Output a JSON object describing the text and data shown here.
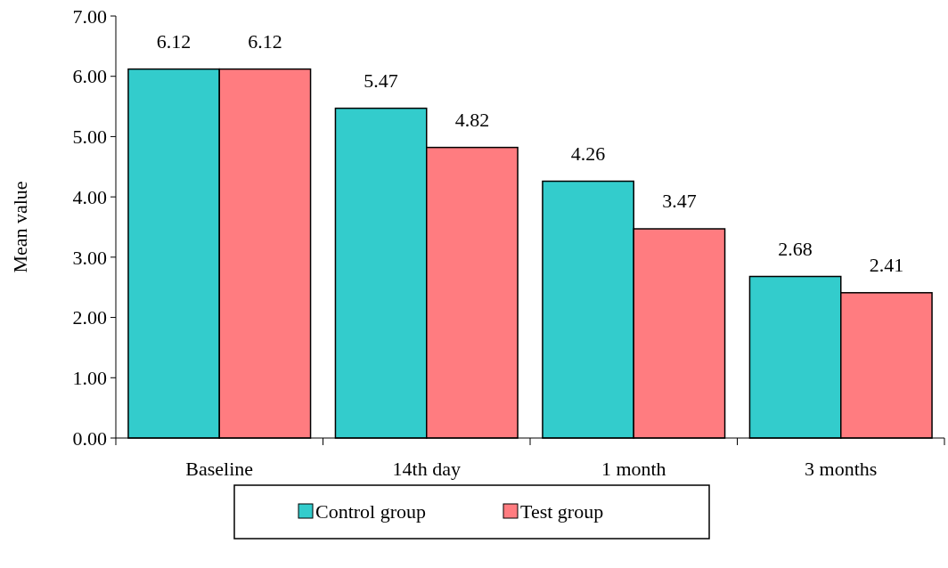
{
  "chart_data": {
    "type": "bar",
    "ylabel": "Mean value",
    "categories": [
      "Baseline",
      "14th day",
      "1 month",
      "3 months"
    ],
    "series": [
      {
        "name": "Control group",
        "color": "#33cccc",
        "values": [
          6.12,
          5.47,
          4.26,
          2.68
        ]
      },
      {
        "name": "Test group",
        "color": "#ff7c80",
        "values": [
          6.12,
          4.82,
          3.47,
          2.41
        ]
      }
    ],
    "ylim": [
      0,
      7
    ],
    "yticks": [
      {
        "value": 0,
        "label": "0.00"
      },
      {
        "value": 1,
        "label": "1.00"
      },
      {
        "value": 2,
        "label": "2.00"
      },
      {
        "value": 3,
        "label": "3.00"
      },
      {
        "value": 4,
        "label": "4.00"
      },
      {
        "value": 5,
        "label": "5.00"
      },
      {
        "value": 6,
        "label": "6.00"
      },
      {
        "value": 7,
        "label": "7.00"
      }
    ],
    "data_labels": true,
    "legend": "bottom"
  }
}
